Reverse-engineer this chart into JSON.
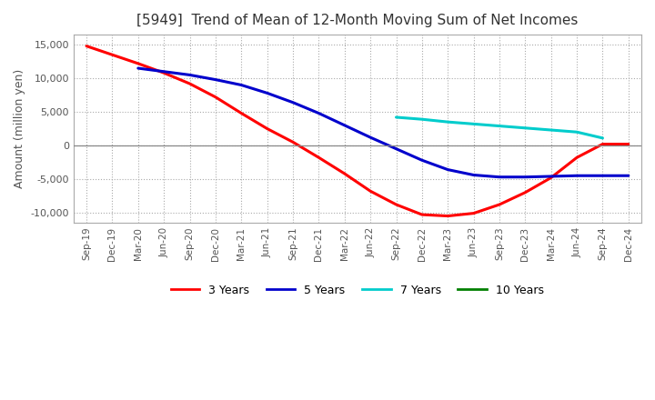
{
  "title": "[5949]  Trend of Mean of 12-Month Moving Sum of Net Incomes",
  "ylabel": "Amount (million yen)",
  "ylim": [
    -11500,
    16500
  ],
  "yticks": [
    -10000,
    -5000,
    0,
    5000,
    10000,
    15000
  ],
  "background_color": "#ffffff",
  "grid_color": "#aaaaaa",
  "line_colors": {
    "3yr": "#ff0000",
    "5yr": "#0000cc",
    "7yr": "#00cccc",
    "10yr": "#008000"
  },
  "legend_labels": [
    "3 Years",
    "5 Years",
    "7 Years",
    "10 Years"
  ],
  "x_labels": [
    "Sep-19",
    "Dec-19",
    "Mar-20",
    "Jun-20",
    "Sep-20",
    "Dec-20",
    "Mar-21",
    "Jun-21",
    "Sep-21",
    "Dec-21",
    "Mar-22",
    "Jun-22",
    "Sep-22",
    "Dec-22",
    "Mar-23",
    "Jun-23",
    "Sep-23",
    "Dec-23",
    "Mar-24",
    "Jun-24",
    "Sep-24",
    "Dec-24"
  ],
  "series_3yr": [
    14800,
    13500,
    12200,
    10800,
    9200,
    7200,
    4800,
    2500,
    500,
    -1800,
    -4200,
    -6800,
    -8800,
    -10300,
    -10500,
    -10100,
    -8800,
    -7000,
    -4800,
    -1800,
    200,
    200
  ],
  "series_5yr": [
    null,
    null,
    11500,
    11000,
    10500,
    9800,
    9000,
    7800,
    6400,
    4800,
    3000,
    1200,
    -500,
    -2200,
    -3600,
    -4400,
    -4700,
    -4700,
    -4600,
    -4500,
    -4500,
    -4500
  ],
  "series_7yr": [
    null,
    null,
    null,
    null,
    null,
    null,
    null,
    null,
    null,
    null,
    null,
    null,
    4200,
    3900,
    3500,
    3200,
    2900,
    2600,
    2300,
    2000,
    1100,
    null
  ],
  "series_10yr": [
    null,
    null,
    null,
    null,
    null,
    null,
    null,
    null,
    null,
    null,
    null,
    null,
    null,
    null,
    null,
    null,
    null,
    null,
    null,
    null,
    null,
    null
  ]
}
